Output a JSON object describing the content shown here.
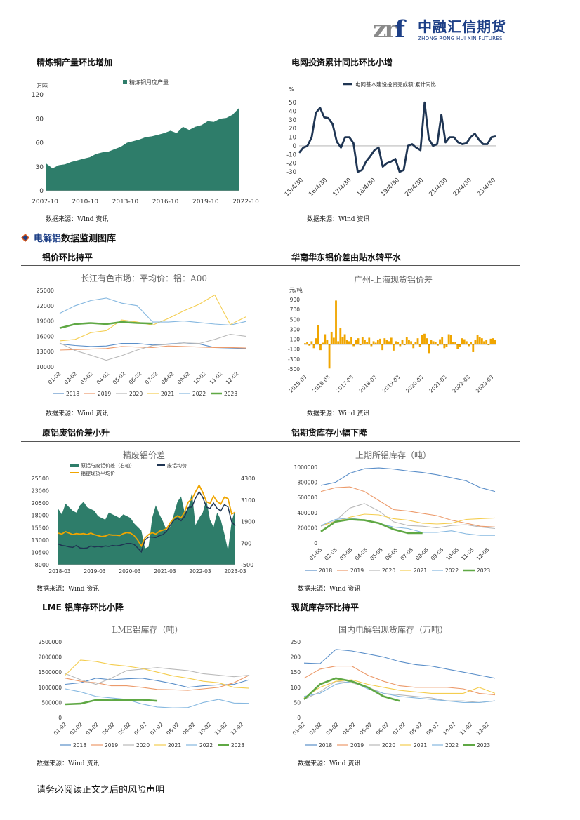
{
  "header": {
    "logo_mark": "zr",
    "logo_f": "f",
    "logo_cn": "中融汇信期货",
    "logo_en": "ZHONG RONG HUI XIN FUTURES"
  },
  "section": {
    "pre": "电解铝",
    "post": "数据监测图库"
  },
  "source_text": "数据来源：Wind 资讯",
  "footer": "请务必阅读正文之后的风险声明",
  "colors": {
    "teal": "#2e7d6a",
    "navy": "#1f3553",
    "orange": "#f0a500",
    "s2018": "#5b8fc9",
    "s2019": "#ec9a6a",
    "s2020": "#b9b9b9",
    "s2021": "#f4cd4f",
    "s2022": "#86b8e0",
    "s2023": "#5fa844"
  },
  "titles": {
    "c1": "精炼铜产量环比增加",
    "c2": "电网投资累计同比环比小增",
    "c3": "铝价环比持平",
    "c4": "华南华东铝价差由贴水转平水",
    "c5": "原铝废铝价差小升",
    "c6": "铝期货库存小幅下降",
    "c7": "LME 铝库存环比小降",
    "c8": "现货库存环比持平"
  },
  "chart_data": [
    {
      "id": "c1",
      "type": "area",
      "title": "",
      "unit": "万吨",
      "series_name": "精炼铜月度产量",
      "x_ticks": [
        "2007-10",
        "2010-10",
        "2013-10",
        "2016-10",
        "2019-10",
        "2022-10"
      ],
      "y_ticks": [
        0,
        30,
        60,
        90,
        120
      ],
      "ylim": [
        0,
        120
      ],
      "x": [
        "2007-10",
        "2008-04",
        "2008-10",
        "2009-04",
        "2009-10",
        "2010-04",
        "2010-10",
        "2011-04",
        "2011-10",
        "2012-04",
        "2012-10",
        "2013-04",
        "2013-10",
        "2014-04",
        "2014-10",
        "2015-04",
        "2015-10",
        "2016-04",
        "2016-10",
        "2017-04",
        "2017-10",
        "2018-04",
        "2018-10",
        "2019-04",
        "2019-10",
        "2020-04",
        "2020-10",
        "2021-04",
        "2021-10",
        "2022-04",
        "2022-10",
        "2023-04"
      ],
      "values": [
        34,
        28,
        32,
        33,
        36,
        38,
        40,
        42,
        46,
        48,
        49,
        52,
        55,
        60,
        62,
        64,
        67,
        68,
        70,
        72,
        75,
        72,
        80,
        76,
        80,
        82,
        87,
        86,
        90,
        91,
        95,
        103
      ]
    },
    {
      "id": "c2",
      "type": "line",
      "title": "",
      "unit": "%",
      "series_name": "电网基本建设投资完成额:累计同比",
      "x_ticks": [
        "15/4/30",
        "16/4/30",
        "17/4/30",
        "18/4/30",
        "19/4/30",
        "20/4/30",
        "21/4/30",
        "22/4/30",
        "23/4/30"
      ],
      "y_ticks": [
        -30,
        -20,
        -10,
        0,
        10,
        20,
        30,
        40,
        50
      ],
      "ylim": [
        -30,
        55
      ],
      "x": [
        "15/04",
        "15/08",
        "15/12",
        "16/02",
        "16/04",
        "16/06",
        "16/08",
        "16/10",
        "16/12",
        "17/02",
        "17/04",
        "17/06",
        "17/08",
        "17/10",
        "17/12",
        "18/02",
        "18/04",
        "18/06",
        "18/08",
        "18/10",
        "18/12",
        "19/02",
        "19/04",
        "19/06",
        "19/08",
        "19/10",
        "19/12",
        "20/02",
        "20/04",
        "20/06",
        "20/08",
        "20/10",
        "20/12",
        "21/02",
        "21/04",
        "21/06",
        "21/08",
        "21/10",
        "21/12",
        "22/02",
        "22/04",
        "22/06",
        "22/08",
        "22/10",
        "22/12",
        "23/02",
        "23/04",
        "23/06"
      ],
      "values": [
        -8,
        -2,
        0,
        10,
        38,
        44,
        33,
        32,
        25,
        5,
        -2,
        10,
        10,
        3,
        -30,
        -28,
        -18,
        -12,
        -5,
        -2,
        -24,
        -20,
        -18,
        -15,
        -30,
        -28,
        0,
        2,
        -2,
        -5,
        50,
        8,
        0,
        2,
        36,
        4,
        10,
        10,
        4,
        2,
        3,
        10,
        14,
        7,
        2,
        2,
        10,
        11
      ]
    },
    {
      "id": "c3",
      "type": "line",
      "title": "长江有色市场：平均价：铝：A00",
      "x_ticks": [
        "01-02",
        "02-02",
        "03-02",
        "04-02",
        "05-02",
        "06-02",
        "07-02",
        "08-02",
        "09-02",
        "10-02",
        "11-02",
        "12-02"
      ],
      "y_ticks": [
        10000,
        13000,
        16000,
        19000,
        22000,
        25000
      ],
      "ylim": [
        10000,
        25000
      ],
      "series": [
        {
          "name": "2018",
          "values": [
            14500,
            14200,
            14000,
            14100,
            14600,
            14600,
            14300,
            14500,
            14700,
            14500,
            13800,
            13700,
            13600
          ]
        },
        {
          "name": "2019",
          "values": [
            13300,
            13400,
            13500,
            13600,
            14000,
            13900,
            13800,
            14100,
            14000,
            13900,
            13800,
            13800,
            13700
          ]
        },
        {
          "name": "2020",
          "values": [
            14700,
            13200,
            12300,
            11300,
            12200,
            13300,
            14200,
            14400,
            14700,
            14600,
            15400,
            16400,
            16000
          ]
        },
        {
          "name": "2021",
          "values": [
            15100,
            15400,
            16700,
            17100,
            19200,
            18800,
            18200,
            19500,
            21000,
            22300,
            24100,
            18300,
            19800
          ]
        },
        {
          "name": "2022",
          "values": [
            20500,
            22000,
            23000,
            23500,
            22500,
            22000,
            18800,
            18800,
            19000,
            18700,
            18400,
            18200,
            18900
          ]
        },
        {
          "name": "2023",
          "values": [
            17600,
            18400,
            18600,
            18400,
            18800,
            18600,
            18500
          ]
        }
      ]
    },
    {
      "id": "c4",
      "type": "bar",
      "title": "广州-上海现货铝价差",
      "unit": "元/吨",
      "x_ticks": [
        "2015-03",
        "2016-03",
        "2017-03",
        "2018-03",
        "2019-03",
        "2020-03",
        "2021-03",
        "2022-03",
        "2023-03"
      ],
      "y_ticks": [
        -500,
        -300,
        -100,
        100,
        300,
        500,
        700,
        900
      ],
      "ylim": [
        -500,
        900
      ],
      "values": [
        20,
        40,
        -30,
        60,
        -80,
        120,
        380,
        -120,
        30,
        200,
        90,
        -490,
        250,
        130,
        880,
        60,
        320,
        140,
        200,
        90,
        60,
        150,
        -40,
        80,
        120,
        -20,
        150,
        90,
        50,
        130,
        -40,
        60,
        30,
        90,
        110,
        -120,
        120,
        80,
        60,
        130,
        -130,
        60,
        40,
        -40,
        80,
        -20,
        150,
        90,
        60,
        -80,
        40,
        120,
        -60,
        180,
        210,
        120,
        -180,
        80,
        60,
        40,
        -30,
        100,
        140,
        -80,
        -60,
        200,
        180,
        50,
        40,
        -90,
        -60,
        120,
        100,
        60,
        -40,
        40,
        -160,
        90,
        180,
        150,
        120,
        60,
        80,
        -20,
        110,
        120,
        90
      ]
    },
    {
      "id": "c5",
      "type": "bar+line",
      "title": "精废铝价差",
      "x_ticks": [
        "2018-03",
        "2019-03",
        "2020-03",
        "2021-03",
        "2022-03",
        "2023-03"
      ],
      "y_left_ticks": [
        8000,
        10500,
        13000,
        15500,
        18000,
        20500,
        23000,
        25500
      ],
      "y_right_ticks": [
        -500,
        700,
        1900,
        3100,
        4300
      ],
      "ylim_left": [
        8000,
        25500
      ],
      "ylim_right": [
        -500,
        4300
      ],
      "series": [
        {
          "name": "原铝与废铝价差（右轴）",
          "axis": "right",
          "values": [
            2600,
            2300,
            2900,
            2700,
            2500,
            2400,
            2800,
            3000,
            2700,
            2600,
            2500,
            2200,
            2100,
            2000,
            2400,
            2300,
            2200,
            2100,
            2300,
            2200,
            2100,
            1800,
            1600,
            1400,
            400,
            500,
            2100,
            2800,
            2300,
            1900,
            1400,
            1600,
            2300,
            3000,
            3300,
            2400,
            2600,
            3500,
            1700,
            2100,
            2400,
            3100,
            2000,
            1600,
            2400,
            2000,
            1200,
            300,
            1900,
            2600
          ]
        },
        {
          "name": "废铝均价",
          "axis": "left",
          "values": [
            12200,
            11900,
            11800,
            11600,
            11500,
            11900,
            11400,
            11300,
            11400,
            11800,
            11600,
            11700,
            11600,
            11800,
            11700,
            11900,
            11800,
            11900,
            12100,
            12300,
            12300,
            12100,
            11400,
            10600,
            13000,
            13600,
            13600,
            13500,
            13900,
            14100,
            14800,
            16000,
            17000,
            17400,
            16900,
            17800,
            19600,
            19700,
            21500,
            22800,
            21700,
            19700,
            19400,
            20500,
            19400,
            18900,
            20200,
            19700,
            16700,
            15900
          ]
        },
        {
          "name": "铝锭现货平均价",
          "axis": "left",
          "values": [
            14400,
            14200,
            14700,
            14400,
            14100,
            14300,
            14200,
            14300,
            14100,
            14400,
            14100,
            13900,
            13700,
            13800,
            14100,
            14000,
            14000,
            13900,
            14300,
            14500,
            14400,
            13900,
            13000,
            11800,
            13400,
            14100,
            14500,
            14200,
            14800,
            15000,
            15300,
            16500,
            17400,
            17900,
            17500,
            18700,
            20700,
            21300,
            22800,
            24100,
            22700,
            20800,
            20400,
            21900,
            20800,
            20300,
            21700,
            21400,
            18300,
            18600
          ]
        }
      ]
    },
    {
      "id": "c6",
      "type": "line",
      "title": "上期所铝库存（吨）",
      "x_ticks": [
        "01-05",
        "02-05",
        "03-05",
        "04-05",
        "05-05",
        "06-05",
        "07-05",
        "08-05",
        "09-05",
        "10-05",
        "11-05",
        "12-05"
      ],
      "y_ticks": [
        0,
        200000,
        400000,
        600000,
        800000,
        1000000
      ],
      "ylim": [
        0,
        1000000
      ],
      "series": [
        {
          "name": "2018",
          "values": [
            760000,
            800000,
            920000,
            980000,
            990000,
            975000,
            950000,
            930000,
            900000,
            860000,
            820000,
            730000,
            680000
          ]
        },
        {
          "name": "2019",
          "values": [
            680000,
            730000,
            740000,
            680000,
            560000,
            440000,
            420000,
            390000,
            360000,
            300000,
            260000,
            220000,
            210000
          ]
        },
        {
          "name": "2020",
          "values": [
            220000,
            290000,
            460000,
            520000,
            420000,
            280000,
            230000,
            220000,
            200000,
            230000,
            240000,
            210000,
            190000
          ]
        },
        {
          "name": "2021",
          "values": [
            230000,
            280000,
            340000,
            380000,
            370000,
            320000,
            300000,
            260000,
            250000,
            260000,
            310000,
            320000,
            330000
          ]
        },
        {
          "name": "2022",
          "values": [
            230000,
            310000,
            330000,
            300000,
            260000,
            210000,
            190000,
            140000,
            140000,
            160000,
            120000,
            100000,
            100000
          ]
        },
        {
          "name": "2023",
          "values": [
            150000,
            280000,
            310000,
            300000,
            260000,
            180000,
            130000,
            130000
          ]
        }
      ]
    },
    {
      "id": "c7",
      "type": "line",
      "title": "LME铝库存（吨）",
      "x_ticks": [
        "01-02",
        "02-02",
        "03-02",
        "04-02",
        "05-02",
        "06-02",
        "07-02",
        "08-02",
        "09-02",
        "10-02",
        "11-02",
        "12-02"
      ],
      "y_ticks": [
        0,
        500000,
        1000000,
        1500000,
        2000000,
        2500000
      ],
      "ylim": [
        0,
        2500000
      ],
      "series": [
        {
          "name": "2018",
          "values": [
            1100000,
            1150000,
            1300000,
            1250000,
            1280000,
            1300000,
            1220000,
            1120000,
            1000000,
            1050000,
            1080000,
            1100000,
            1250000
          ]
        },
        {
          "name": "2019",
          "values": [
            1300000,
            1200000,
            1150000,
            1050000,
            1050000,
            1000000,
            930000,
            920000,
            900000,
            950000,
            1000000,
            1150000,
            1400000
          ]
        },
        {
          "name": "2020",
          "values": [
            1450000,
            1250000,
            1100000,
            1300000,
            1550000,
            1600000,
            1650000,
            1600000,
            1550000,
            1450000,
            1400000,
            1350000,
            1400000
          ]
        },
        {
          "name": "2021",
          "values": [
            1400000,
            1900000,
            1850000,
            1750000,
            1700000,
            1620000,
            1500000,
            1380000,
            1300000,
            1200000,
            1150000,
            1000000,
            970000
          ]
        },
        {
          "name": "2022",
          "values": [
            950000,
            850000,
            700000,
            650000,
            600000,
            450000,
            350000,
            320000,
            330000,
            500000,
            600000,
            480000,
            470000
          ]
        },
        {
          "name": "2023",
          "values": [
            440000,
            460000,
            580000,
            570000,
            580000,
            590000,
            550000
          ]
        }
      ]
    },
    {
      "id": "c8",
      "type": "line",
      "title": "国内电解铝现货库存（万吨）",
      "x_ticks": [
        "01-02",
        "02-02",
        "03-02",
        "04-02",
        "05-02",
        "06-02",
        "07-02",
        "08-02",
        "09-02",
        "10-02",
        "11-02",
        "12-02"
      ],
      "y_ticks": [
        0,
        50,
        100,
        150,
        200,
        250
      ],
      "ylim": [
        0,
        250
      ],
      "series": [
        {
          "name": "2018",
          "values": [
            180,
            178,
            225,
            220,
            210,
            200,
            185,
            175,
            170,
            160,
            150,
            140,
            130
          ]
        },
        {
          "name": "2019",
          "values": [
            130,
            160,
            170,
            170,
            140,
            120,
            105,
            100,
            100,
            100,
            95,
            80,
            75
          ]
        },
        {
          "name": "2020",
          "values": [
            60,
            85,
            120,
            115,
            100,
            80,
            75,
            70,
            65,
            55,
            55,
            50,
            55
          ]
        },
        {
          "name": "2021",
          "values": [
            65,
            100,
            120,
            125,
            110,
            100,
            90,
            85,
            80,
            80,
            80,
            100,
            80
          ]
        },
        {
          "name": "2022",
          "values": [
            70,
            80,
            110,
            120,
            95,
            80,
            70,
            65,
            60,
            55,
            50,
            50,
            55
          ]
        },
        {
          "name": "2023",
          "values": [
            60,
            110,
            130,
            120,
            100,
            70,
            55
          ]
        }
      ]
    }
  ]
}
